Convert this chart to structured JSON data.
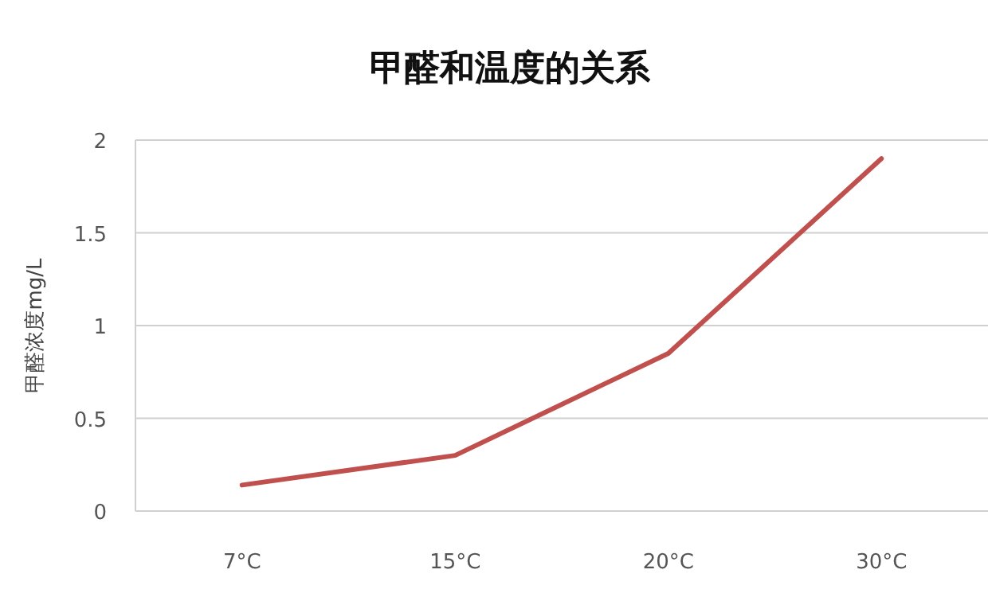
{
  "chart_data": {
    "type": "line",
    "title": "甲醛和温度的关系",
    "ylabel": "甲醛浓度mg/L",
    "categories": [
      "7°C",
      "15°C",
      "20°C",
      "30°C"
    ],
    "series": [
      {
        "color": "#c0504d",
        "values": [
          0.14,
          0.3,
          0.85,
          1.9
        ]
      }
    ],
    "ylim": [
      0,
      2
    ],
    "yticks": [
      0,
      0.5,
      1,
      1.5,
      2
    ],
    "grid": "y"
  }
}
